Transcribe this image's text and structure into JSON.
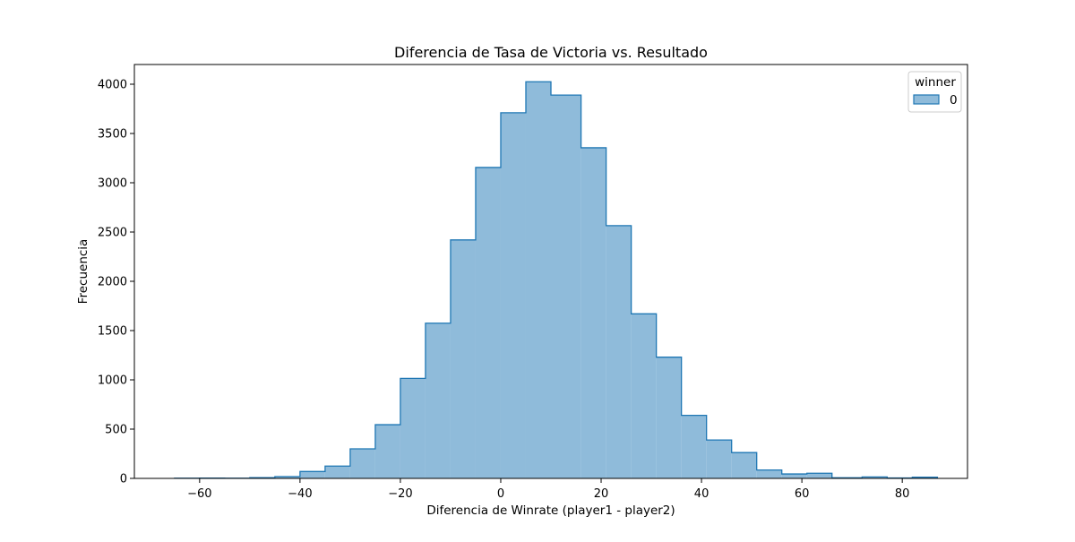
{
  "chart_data": {
    "type": "histogram",
    "title": "Diferencia de Tasa de Victoria vs. Resultado",
    "xlabel": "Diferencia de Winrate (player1 - player2)",
    "ylabel": "Frecuencia",
    "xlim": [
      -73,
      93
    ],
    "ylim": [
      0,
      4200
    ],
    "xticks": [
      -60,
      -40,
      -20,
      0,
      20,
      40,
      60,
      80
    ],
    "yticks": [
      0,
      500,
      1000,
      1500,
      2000,
      2500,
      3000,
      3500,
      4000
    ],
    "grid": false,
    "legend": {
      "title": "winner",
      "placement": "top-right",
      "entries": [
        {
          "label": "0",
          "color": "#1f77b4"
        }
      ]
    },
    "fill_color": "#8fbbda",
    "edge_color": "#1f77b4",
    "series": [
      {
        "name": "0",
        "bin_edges": [
          -65,
          -60,
          -55,
          -50,
          -45,
          -40,
          -35,
          -30,
          -25,
          -20,
          -15,
          -10,
          -5,
          0,
          5,
          10,
          16,
          21,
          26,
          31,
          36,
          41,
          46,
          51,
          56,
          61,
          66,
          72,
          77,
          82,
          87
        ],
        "values": [
          2,
          3,
          2,
          8,
          18,
          70,
          125,
          300,
          545,
          1015,
          1575,
          2420,
          3155,
          3710,
          4025,
          3890,
          3355,
          2565,
          1670,
          1230,
          640,
          390,
          262,
          85,
          45,
          52,
          7,
          15,
          4,
          12
        ]
      }
    ]
  }
}
